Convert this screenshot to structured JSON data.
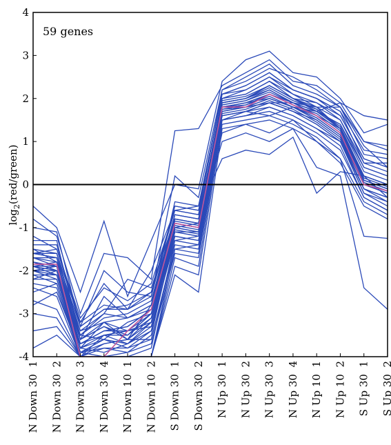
{
  "chart_data": {
    "type": "line",
    "annotation": "59 genes",
    "ylabel": "log2(red/green)",
    "ylabel_main": "log",
    "ylabel_sub": "2",
    "ylabel_rest": "(red/green)",
    "ylim": [
      -4,
      4
    ],
    "yticks": [
      "-4",
      "-3",
      "-2",
      "-1",
      "0",
      "1",
      "2",
      "3",
      "4"
    ],
    "categories": [
      "N Down 30  1",
      "N Down 30  2",
      "N Down 30  3",
      "N Down 30  4",
      "N Down 10  1",
      "N Down 10  2",
      "S Down 30  1",
      "S Down 30  2",
      "N Up 30  1",
      "N Up 30  2",
      "N Up 30  3",
      "N Up 30  4",
      "N Up 10  1",
      "N Up 10  2",
      "S Up 30  1",
      "S Up 30  2"
    ],
    "series_color": "#2a49b8",
    "mean_color": "#c0569a",
    "zero_line_color": "#000000",
    "mean_values": [
      -1.85,
      -1.85,
      -4.0,
      -4.0,
      -3.4,
      -2.9,
      -0.9,
      -1.0,
      1.8,
      1.8,
      2.1,
      1.85,
      1.6,
      1.2,
      0.0,
      -0.15
    ],
    "series": [
      {
        "values": [
          -0.5,
          -1.0,
          -2.5,
          -0.85,
          -2.6,
          -1.3,
          0.0,
          -0.1,
          2.4,
          2.9,
          3.1,
          2.6,
          2.5,
          2.0,
          1.2,
          1.4
        ]
      },
      {
        "values": [
          -0.8,
          -1.2,
          -3.0,
          -1.6,
          -1.7,
          -2.2,
          1.25,
          1.3,
          2.3,
          2.6,
          2.9,
          2.4,
          2.3,
          1.9,
          1.6,
          1.5
        ]
      },
      {
        "values": [
          -1.0,
          -1.1,
          -3.3,
          -2.0,
          -2.5,
          -2.6,
          0.2,
          -0.3,
          2.2,
          2.4,
          2.7,
          2.5,
          2.2,
          1.8,
          1.0,
          0.9
        ]
      },
      {
        "values": [
          -1.3,
          -1.3,
          -3.6,
          -2.6,
          -3.1,
          -2.8,
          -0.4,
          -0.5,
          2.1,
          2.3,
          2.6,
          2.2,
          2.0,
          1.7,
          0.8,
          0.7
        ]
      },
      {
        "values": [
          -1.6,
          -1.7,
          -3.8,
          -3.2,
          -3.4,
          -3.0,
          -0.7,
          -0.8,
          2.0,
          2.1,
          2.4,
          2.0,
          1.9,
          1.6,
          0.6,
          0.4
        ]
      },
      {
        "values": [
          -1.9,
          -2.0,
          -4.0,
          -3.5,
          -3.7,
          -3.2,
          -0.9,
          -1.0,
          1.9,
          2.0,
          2.2,
          1.9,
          1.7,
          1.4,
          0.4,
          0.2
        ]
      },
      {
        "values": [
          -2.1,
          -2.3,
          -4.0,
          -3.8,
          -3.9,
          -3.5,
          -1.1,
          -1.2,
          1.8,
          1.9,
          2.0,
          1.8,
          1.6,
          1.3,
          0.2,
          0.0
        ]
      },
      {
        "values": [
          -2.4,
          -2.6,
          -4.0,
          -4.0,
          -4.0,
          -3.8,
          -1.3,
          -1.4,
          1.7,
          1.8,
          1.9,
          1.7,
          1.5,
          1.1,
          0.0,
          -0.2
        ]
      },
      {
        "values": [
          -2.7,
          -2.9,
          -4.0,
          -4.0,
          -4.0,
          -4.0,
          -1.5,
          -1.6,
          1.6,
          1.7,
          1.8,
          1.6,
          1.3,
          1.0,
          -0.2,
          -0.4
        ]
      },
      {
        "values": [
          -3.0,
          -3.1,
          -4.0,
          -4.0,
          -4.0,
          -4.0,
          -1.7,
          -1.9,
          1.5,
          1.6,
          1.7,
          1.5,
          1.2,
          0.8,
          -0.3,
          -0.6
        ]
      },
      {
        "values": [
          -3.4,
          -3.3,
          -4.0,
          -4.0,
          -4.0,
          -4.0,
          -1.9,
          -2.1,
          1.4,
          1.5,
          1.6,
          1.4,
          1.1,
          0.6,
          -0.4,
          -0.7
        ]
      },
      {
        "values": [
          -3.8,
          -3.5,
          -4.0,
          -4.0,
          -4.0,
          -4.0,
          -2.1,
          -2.5,
          1.3,
          1.4,
          1.5,
          1.3,
          1.0,
          0.5,
          -0.5,
          -0.8
        ]
      },
      {
        "values": [
          -1.2,
          -1.5,
          -3.2,
          -2.8,
          -2.9,
          -2.0,
          -0.6,
          -0.7,
          2.2,
          2.5,
          2.8,
          2.3,
          2.1,
          1.8,
          0.7,
          0.6
        ]
      },
      {
        "values": [
          -1.5,
          -1.8,
          -3.4,
          -3.0,
          -2.2,
          -2.4,
          -0.8,
          -0.9,
          2.0,
          2.2,
          2.5,
          2.1,
          1.8,
          1.5,
          0.5,
          0.3
        ]
      },
      {
        "values": [
          -1.7,
          -1.9,
          -3.6,
          -3.3,
          -3.5,
          -3.1,
          -1.0,
          -1.1,
          1.9,
          2.0,
          2.3,
          2.0,
          1.7,
          1.4,
          0.3,
          0.1
        ]
      },
      {
        "values": [
          -2.0,
          -2.2,
          -3.9,
          -3.6,
          -3.8,
          -3.4,
          -1.2,
          -1.3,
          1.8,
          1.9,
          2.1,
          1.9,
          1.6,
          1.2,
          0.1,
          -0.1
        ]
      },
      {
        "values": [
          -2.3,
          -2.4,
          -4.0,
          -3.7,
          -3.6,
          -3.6,
          -1.4,
          -1.5,
          1.7,
          1.8,
          2.0,
          1.8,
          1.5,
          1.1,
          -0.1,
          -0.3
        ]
      },
      {
        "values": [
          -1.8,
          -2.0,
          -3.7,
          -3.4,
          -3.3,
          -2.9,
          -0.9,
          -1.0,
          1.9,
          2.0,
          2.3,
          2.0,
          1.8,
          1.3,
          0.2,
          0.0
        ]
      },
      {
        "values": [
          -1.6,
          -1.6,
          -3.5,
          -3.1,
          -3.0,
          -2.7,
          -0.7,
          -0.8,
          2.0,
          2.1,
          2.4,
          2.1,
          1.9,
          1.5,
          0.4,
          0.2
        ]
      },
      {
        "values": [
          -1.4,
          -1.4,
          -3.3,
          -2.9,
          -2.8,
          -2.5,
          -0.5,
          -0.6,
          2.1,
          2.2,
          2.5,
          2.2,
          2.0,
          1.6,
          0.6,
          0.4
        ]
      },
      {
        "values": [
          -2.2,
          -2.0,
          -3.8,
          -3.9,
          -3.7,
          -3.3,
          -1.3,
          -1.2,
          1.6,
          1.7,
          1.9,
          1.7,
          1.4,
          1.0,
          -0.2,
          -0.5
        ]
      },
      {
        "values": [
          -2.5,
          -2.3,
          -3.9,
          -4.0,
          -3.9,
          -3.7,
          -1.6,
          -1.7,
          1.5,
          1.6,
          1.8,
          1.6,
          1.3,
          0.9,
          -0.3,
          -0.6
        ]
      },
      {
        "values": [
          -1.9,
          -1.8,
          -3.5,
          -3.6,
          -3.2,
          -3.0,
          -1.0,
          -0.9,
          1.85,
          1.95,
          2.2,
          1.9,
          1.7,
          1.3,
          0.1,
          -0.1
        ]
      },
      {
        "values": [
          -2.0,
          -2.1,
          -3.7,
          -3.5,
          -3.4,
          -3.2,
          -1.1,
          -1.1,
          1.8,
          1.85,
          2.1,
          1.85,
          1.6,
          1.2,
          0.0,
          -0.2
        ]
      },
      {
        "values": [
          -1.7,
          -1.7,
          -3.4,
          -3.2,
          -3.1,
          -2.8,
          -0.8,
          -0.9,
          1.9,
          2.0,
          2.25,
          1.95,
          1.75,
          1.35,
          0.2,
          0.0
        ]
      },
      {
        "values": [
          -2.8,
          -2.5,
          -3.9,
          -3.8,
          -3.8,
          -3.6,
          -1.5,
          -1.4,
          1.6,
          1.7,
          1.9,
          1.7,
          1.4,
          1.0,
          -0.1,
          -0.4
        ]
      },
      {
        "values": [
          -1.6,
          -1.5,
          -3.1,
          -2.4,
          -2.7,
          -2.3,
          -0.6,
          -0.5,
          2.1,
          2.3,
          2.6,
          2.2,
          2.0,
          1.7,
          0.5,
          0.5
        ]
      },
      {
        "values": [
          -2.0,
          -2.0,
          -3.6,
          -3.3,
          -3.6,
          -3.1,
          -1.0,
          -1.1,
          1.75,
          1.85,
          2.05,
          1.8,
          1.55,
          1.15,
          0.05,
          -0.15
        ]
      },
      {
        "values": [
          -1.9,
          -1.9,
          -3.8,
          -3.5,
          -3.5,
          -3.0,
          -0.95,
          -1.05,
          1.8,
          1.9,
          2.1,
          1.85,
          1.65,
          1.25,
          0.1,
          -0.1
        ]
      },
      {
        "values": [
          -1.5,
          -1.6,
          -3.2,
          -2.3,
          -2.9,
          -2.6,
          -0.5,
          -0.6,
          0.6,
          0.8,
          0.7,
          1.1,
          -0.2,
          0.3,
          0.2,
          -0.3
        ]
      },
      {
        "values": [
          -1.8,
          -2.0,
          -3.5,
          -3.0,
          -3.1,
          -2.9,
          -0.8,
          -0.9,
          1.0,
          1.2,
          1.0,
          1.3,
          0.4,
          0.2,
          -2.4,
          -2.9
        ]
      },
      {
        "values": [
          -2.1,
          -2.1,
          -3.7,
          -3.4,
          -3.4,
          -3.3,
          -1.1,
          -1.2,
          1.2,
          1.4,
          1.2,
          1.5,
          1.0,
          0.6,
          -1.2,
          -1.25
        ]
      },
      {
        "values": [
          -1.7,
          -1.8,
          -3.6,
          -3.2,
          -3.6,
          -2.8,
          -0.7,
          -0.8,
          1.5,
          1.7,
          1.6,
          1.8,
          1.7,
          1.9,
          1.0,
          0.8
        ]
      },
      {
        "values": [
          -1.6,
          -1.7,
          -3.3,
          -2.9,
          -2.9,
          -2.5,
          -0.6,
          -0.7,
          1.7,
          1.8,
          1.9,
          1.9,
          1.8,
          1.8,
          0.9,
          0.4
        ]
      },
      {
        "values": [
          -2.2,
          -2.2,
          -3.8,
          -3.6,
          -3.7,
          -3.4,
          -1.2,
          -1.3,
          1.65,
          1.75,
          1.95,
          1.75,
          1.45,
          1.05,
          -0.1,
          -0.3
        ]
      },
      {
        "values": [
          -1.8,
          -1.9,
          -3.7,
          -3.4,
          -3.3,
          -2.9,
          -0.85,
          -0.95,
          1.85,
          1.95,
          2.15,
          1.9,
          1.7,
          1.3,
          0.15,
          -0.05
        ]
      },
      {
        "values": [
          -2.0,
          -1.9,
          -3.6,
          -3.3,
          -3.5,
          -3.0,
          -0.9,
          -1.0,
          1.95,
          2.05,
          2.3,
          2.0,
          1.75,
          1.3,
          0.1,
          -0.1
        ]
      },
      {
        "values": [
          -1.9,
          -2.1,
          -3.9,
          -3.7,
          -3.6,
          -3.2,
          -1.05,
          -1.15,
          1.75,
          1.8,
          2.0,
          1.8,
          1.55,
          1.15,
          0.0,
          -0.2
        ]
      }
    ],
    "grid": false
  }
}
